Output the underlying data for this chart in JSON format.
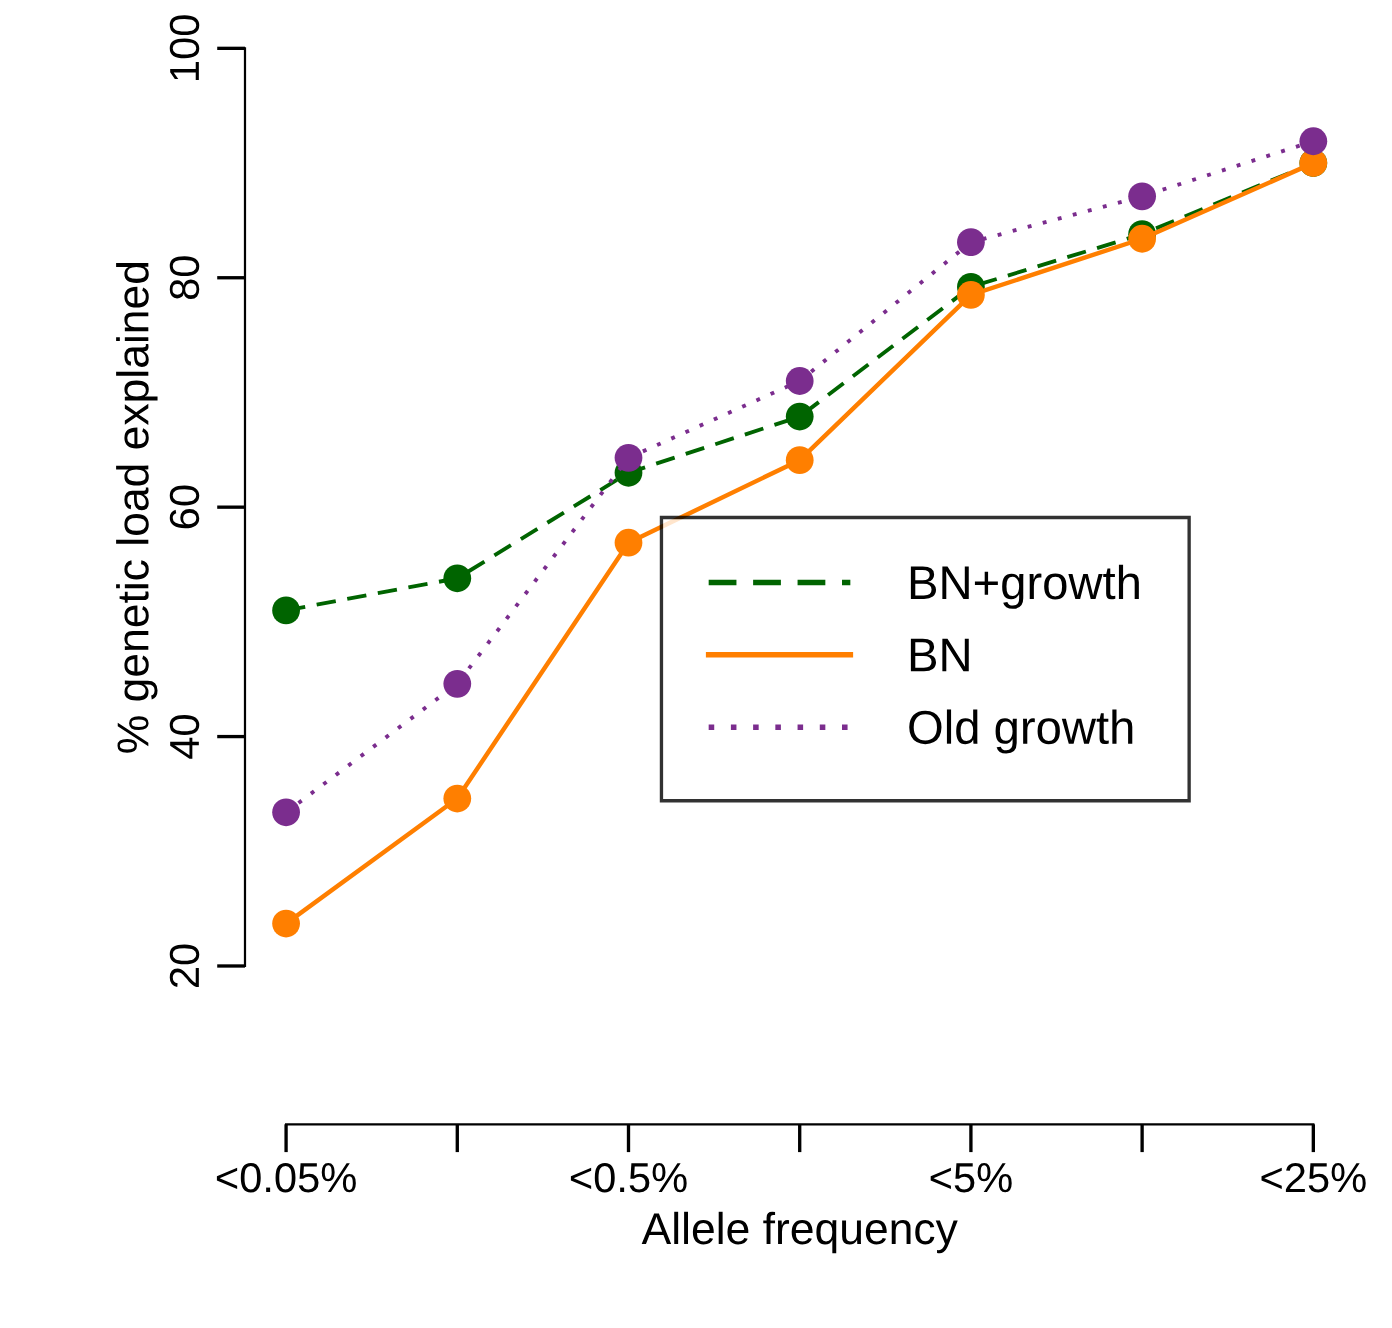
{
  "chart_data": {
    "type": "line",
    "xlabel": "Allele frequency",
    "ylabel": "% genetic load explained",
    "categories": [
      "<0.05%",
      null,
      "<0.5%",
      null,
      "<5%",
      null,
      "<25%"
    ],
    "series": [
      {
        "name": "BN+growth",
        "color": "#006400",
        "line_style": "dashed",
        "values": [
          51.0,
          53.8,
          63.0,
          67.9,
          79.2,
          83.8,
          90.0
        ]
      },
      {
        "name": "BN",
        "color": "#ff7f00",
        "line_style": "solid",
        "values": [
          23.7,
          34.6,
          56.9,
          64.1,
          78.5,
          83.4,
          90.0
        ]
      },
      {
        "name": "Old growth",
        "color": "#7b2d8e",
        "line_style": "dotted",
        "values": [
          33.4,
          44.6,
          64.3,
          71.0,
          83.1,
          87.1,
          91.9
        ]
      }
    ],
    "marker": "circle",
    "ylim": [
      20,
      100
    ],
    "yticks": [
      20,
      40,
      60,
      80,
      100
    ],
    "grid": false,
    "legend": "bottom right"
  }
}
